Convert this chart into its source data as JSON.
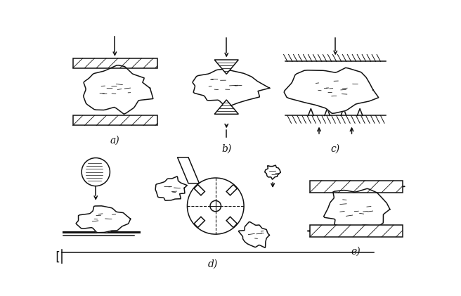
{
  "bg_color": "#ffffff",
  "ink_color": "#111111",
  "label_fontsize": 10,
  "labels": [
    "a)",
    "b)",
    "c)",
    "d)",
    "e)"
  ]
}
